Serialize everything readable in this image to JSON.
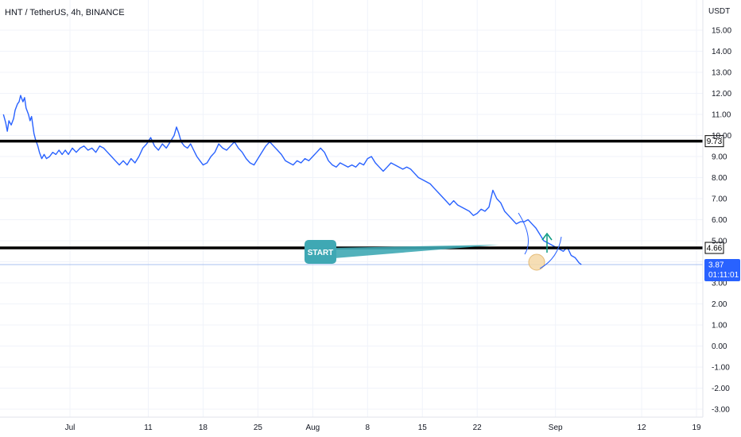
{
  "chart_data": {
    "type": "line",
    "title": "HNT / TetherUS, 4h, BINANCE",
    "currency": "USDT",
    "ylim": [
      -3.2,
      15.6
    ],
    "y_ticks": [
      "15.00",
      "14.00",
      "13.00",
      "12.00",
      "11.00",
      "10.00",
      "9.00",
      "8.00",
      "7.00",
      "6.00",
      "5.00",
      "4.00",
      "3.00",
      "2.00",
      "1.00",
      "0.00",
      "-1.00",
      "-2.00",
      "-3.00"
    ],
    "x_ticks": [
      {
        "label": "Jul",
        "day": 0
      },
      {
        "label": "11",
        "day": 10
      },
      {
        "label": "18",
        "day": 17
      },
      {
        "label": "25",
        "day": 24
      },
      {
        "label": "Aug",
        "day": 31
      },
      {
        "label": "8",
        "day": 38
      },
      {
        "label": "15",
        "day": 45
      },
      {
        "label": "22",
        "day": 52
      },
      {
        "label": "Sep",
        "day": 62
      },
      {
        "label": "12",
        "day": 73
      },
      {
        "label": "19",
        "day": 80
      }
    ],
    "series": [
      {
        "color": "#2962ff",
        "points": [
          [
            -8.5,
            11.0
          ],
          [
            -8.2,
            10.6
          ],
          [
            -8.0,
            10.2
          ],
          [
            -7.8,
            10.7
          ],
          [
            -7.5,
            10.5
          ],
          [
            -7.2,
            10.8
          ],
          [
            -7.0,
            11.2
          ],
          [
            -6.7,
            11.5
          ],
          [
            -6.5,
            11.6
          ],
          [
            -6.3,
            11.9
          ],
          [
            -6.0,
            11.6
          ],
          [
            -5.8,
            11.8
          ],
          [
            -5.6,
            11.3
          ],
          [
            -5.3,
            11.0
          ],
          [
            -5.1,
            10.7
          ],
          [
            -4.9,
            10.9
          ],
          [
            -4.6,
            10.1
          ],
          [
            -4.4,
            9.8
          ],
          [
            -4.1,
            9.5
          ],
          [
            -3.9,
            9.2
          ],
          [
            -3.6,
            8.9
          ],
          [
            -3.3,
            9.1
          ],
          [
            -3.0,
            8.9
          ],
          [
            -2.6,
            9.0
          ],
          [
            -2.2,
            9.2
          ],
          [
            -1.8,
            9.1
          ],
          [
            -1.4,
            9.3
          ],
          [
            -1.0,
            9.1
          ],
          [
            -0.6,
            9.3
          ],
          [
            -0.2,
            9.1
          ],
          [
            0.3,
            9.4
          ],
          [
            0.8,
            9.2
          ],
          [
            1.3,
            9.4
          ],
          [
            1.8,
            9.5
          ],
          [
            2.3,
            9.3
          ],
          [
            2.8,
            9.4
          ],
          [
            3.3,
            9.2
          ],
          [
            3.8,
            9.5
          ],
          [
            4.3,
            9.4
          ],
          [
            4.8,
            9.2
          ],
          [
            5.3,
            9.0
          ],
          [
            5.8,
            8.8
          ],
          [
            6.3,
            8.6
          ],
          [
            6.8,
            8.8
          ],
          [
            7.3,
            8.6
          ],
          [
            7.8,
            8.9
          ],
          [
            8.3,
            8.7
          ],
          [
            8.8,
            9.0
          ],
          [
            9.3,
            9.4
          ],
          [
            9.8,
            9.6
          ],
          [
            10.3,
            9.9
          ],
          [
            10.8,
            9.5
          ],
          [
            11.3,
            9.3
          ],
          [
            11.8,
            9.6
          ],
          [
            12.3,
            9.4
          ],
          [
            12.8,
            9.7
          ],
          [
            13.3,
            10.0
          ],
          [
            13.6,
            10.4
          ],
          [
            13.9,
            10.1
          ],
          [
            14.2,
            9.7
          ],
          [
            14.6,
            9.5
          ],
          [
            15.0,
            9.4
          ],
          [
            15.4,
            9.6
          ],
          [
            15.8,
            9.3
          ],
          [
            16.2,
            9.0
          ],
          [
            16.6,
            8.8
          ],
          [
            17.0,
            8.6
          ],
          [
            17.5,
            8.7
          ],
          [
            18.0,
            9.0
          ],
          [
            18.5,
            9.2
          ],
          [
            19.0,
            9.6
          ],
          [
            19.5,
            9.4
          ],
          [
            20.0,
            9.3
          ],
          [
            20.5,
            9.5
          ],
          [
            21.0,
            9.7
          ],
          [
            21.5,
            9.4
          ],
          [
            22.0,
            9.2
          ],
          [
            22.5,
            8.9
          ],
          [
            23.0,
            8.7
          ],
          [
            23.5,
            8.6
          ],
          [
            24.0,
            8.9
          ],
          [
            24.5,
            9.2
          ],
          [
            25.0,
            9.5
          ],
          [
            25.5,
            9.7
          ],
          [
            26.0,
            9.5
          ],
          [
            26.5,
            9.3
          ],
          [
            27.0,
            9.1
          ],
          [
            27.5,
            8.8
          ],
          [
            28.0,
            8.7
          ],
          [
            28.5,
            8.6
          ],
          [
            29.0,
            8.8
          ],
          [
            29.5,
            8.7
          ],
          [
            30.0,
            8.9
          ],
          [
            30.5,
            8.8
          ],
          [
            31.0,
            9.0
          ],
          [
            31.5,
            9.2
          ],
          [
            32.0,
            9.4
          ],
          [
            32.5,
            9.2
          ],
          [
            33.0,
            8.8
          ],
          [
            33.5,
            8.6
          ],
          [
            34.0,
            8.5
          ],
          [
            34.5,
            8.7
          ],
          [
            35.0,
            8.6
          ],
          [
            35.5,
            8.5
          ],
          [
            36.0,
            8.6
          ],
          [
            36.5,
            8.5
          ],
          [
            37.0,
            8.7
          ],
          [
            37.5,
            8.6
          ],
          [
            38.0,
            8.9
          ],
          [
            38.5,
            9.0
          ],
          [
            39.0,
            8.7
          ],
          [
            39.5,
            8.5
          ],
          [
            40.0,
            8.3
          ],
          [
            40.5,
            8.5
          ],
          [
            41.0,
            8.7
          ],
          [
            41.5,
            8.6
          ],
          [
            42.0,
            8.5
          ],
          [
            42.5,
            8.4
          ],
          [
            43.0,
            8.5
          ],
          [
            43.5,
            8.4
          ],
          [
            44.0,
            8.2
          ],
          [
            44.5,
            8.0
          ],
          [
            45.0,
            7.9
          ],
          [
            45.5,
            7.8
          ],
          [
            46.0,
            7.7
          ],
          [
            46.5,
            7.5
          ],
          [
            47.0,
            7.3
          ],
          [
            47.5,
            7.1
          ],
          [
            48.0,
            6.9
          ],
          [
            48.5,
            6.7
          ],
          [
            49.0,
            6.9
          ],
          [
            49.5,
            6.7
          ],
          [
            50.0,
            6.6
          ],
          [
            50.5,
            6.5
          ],
          [
            51.0,
            6.4
          ],
          [
            51.5,
            6.2
          ],
          [
            52.0,
            6.3
          ],
          [
            52.5,
            6.5
          ],
          [
            53.0,
            6.4
          ],
          [
            53.5,
            6.6
          ],
          [
            54.0,
            7.4
          ],
          [
            54.5,
            7.0
          ],
          [
            55.0,
            6.8
          ],
          [
            55.5,
            6.4
          ],
          [
            56.0,
            6.2
          ],
          [
            56.5,
            6.0
          ],
          [
            57.0,
            5.8
          ],
          [
            57.5,
            5.9
          ],
          [
            58.0,
            5.9
          ],
          [
            58.5,
            6.0
          ],
          [
            59.0,
            5.8
          ],
          [
            59.5,
            5.6
          ],
          [
            60.0,
            5.3
          ],
          [
            60.5,
            5.0
          ],
          [
            61.0,
            4.9
          ],
          [
            61.5,
            4.8
          ],
          [
            62.0,
            4.7
          ],
          [
            62.5,
            4.6
          ],
          [
            63.0,
            4.5
          ],
          [
            63.5,
            4.7
          ],
          [
            64.0,
            4.3
          ],
          [
            64.5,
            4.2
          ],
          [
            65.0,
            3.95
          ],
          [
            65.3,
            3.87
          ]
        ]
      }
    ],
    "levels": [
      {
        "value": 9.73,
        "label": "9.73"
      },
      {
        "value": 4.66,
        "label": "4.66"
      }
    ],
    "current_price": {
      "value": 3.87,
      "label": "3.87",
      "countdown": "01:11:01"
    },
    "annotation": {
      "text": "START",
      "color": "#3fa8b4"
    },
    "arrow_color": "#089981",
    "circle_color": "#f5d9a8"
  }
}
